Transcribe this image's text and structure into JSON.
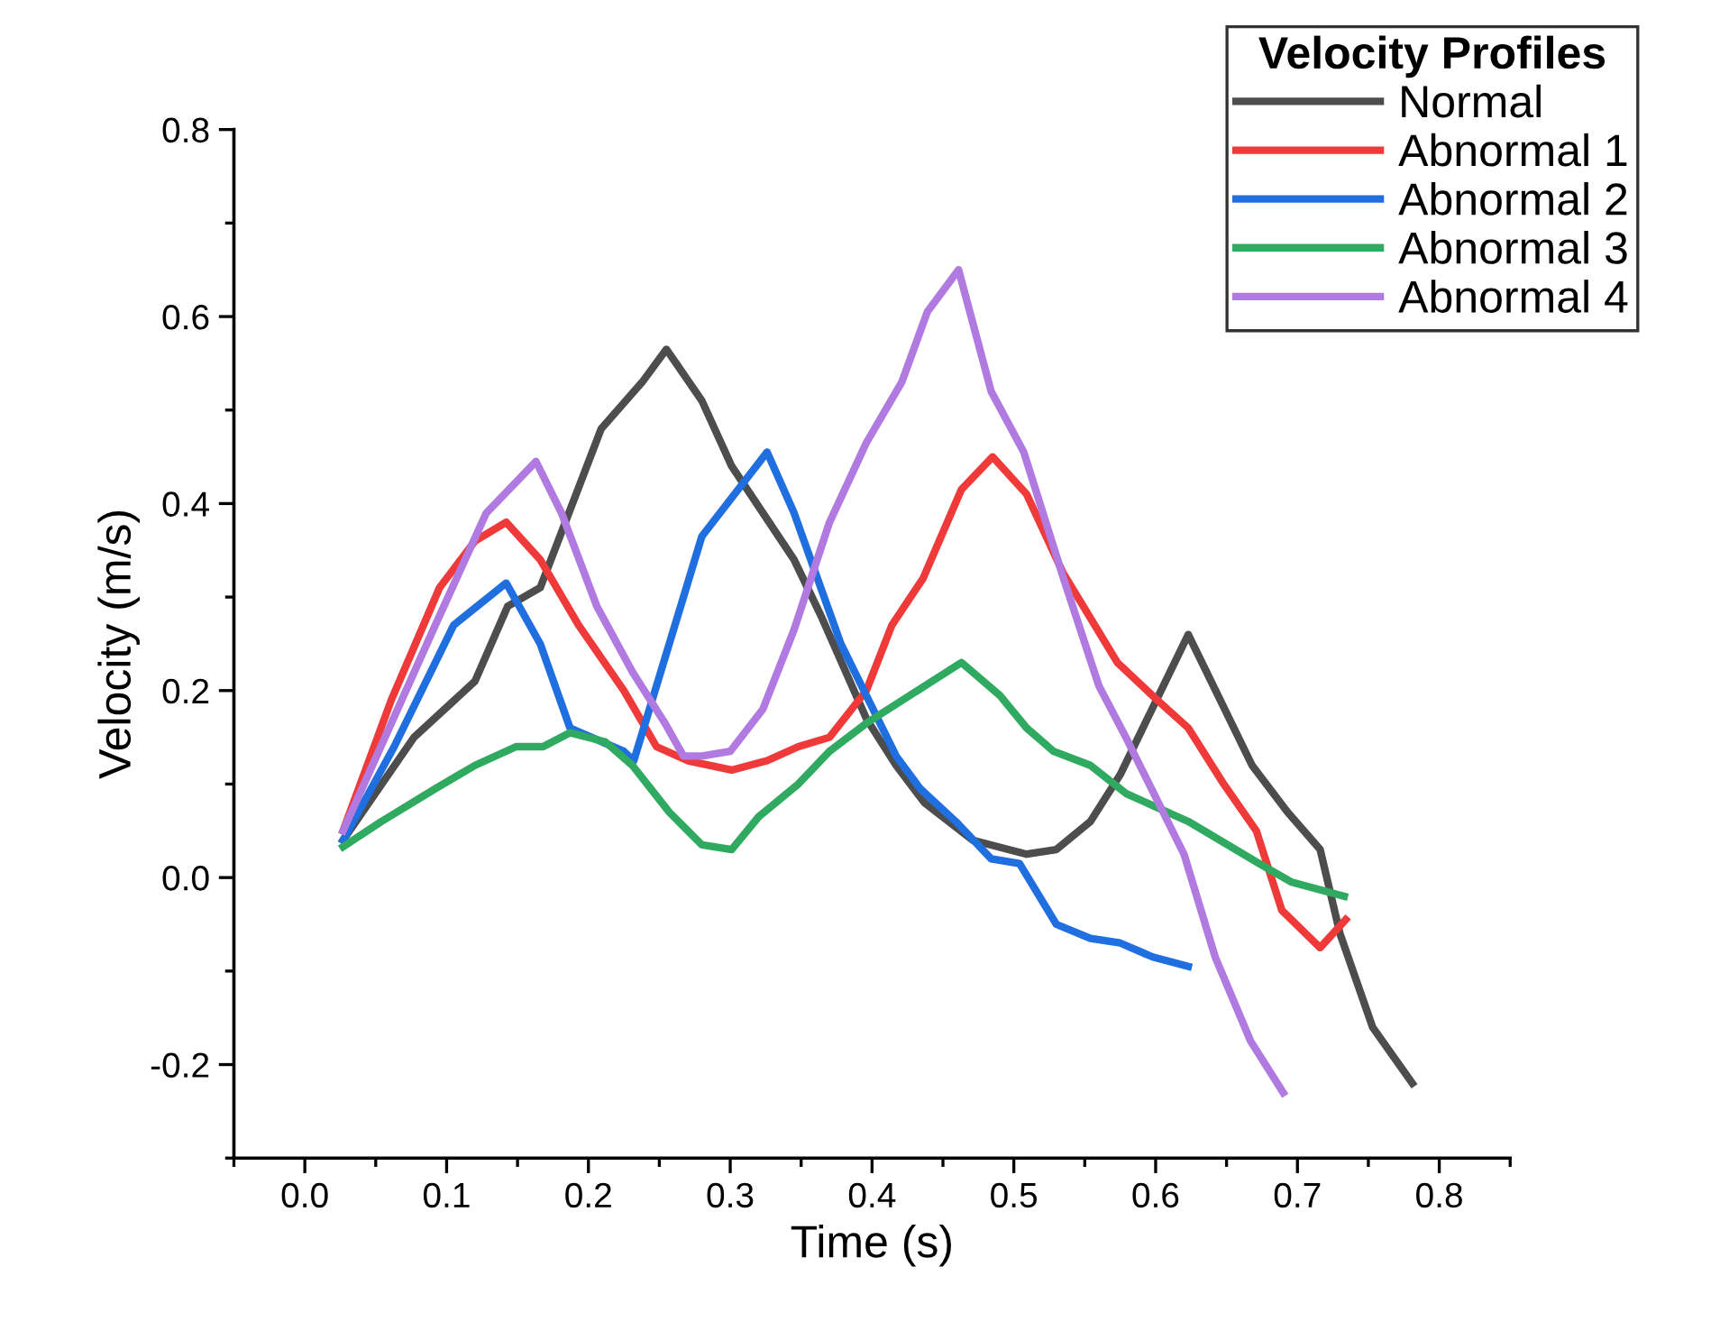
{
  "chart_data": {
    "type": "line",
    "xlabel": "Time (s)",
    "ylabel": "Velocity (m/s)",
    "legend_title": "Velocity Profiles",
    "legend": "top right",
    "grid": false,
    "marker": "none",
    "line_style": "solid",
    "xlim": [
      -0.05,
      0.85
    ],
    "xticks": [
      {
        "value": 0,
        "label": "0.0"
      },
      0.1,
      0.2,
      0.3,
      0.4,
      0.5,
      0.6,
      0.7,
      0.8
    ],
    "ylim": [
      -0.3,
      0.8
    ],
    "yticks": [
      -0.2,
      {
        "value": 0,
        "label": "0.0"
      },
      0.2,
      0.4,
      0.6,
      0.8
    ],
    "series": [
      {
        "name": "Normal",
        "color": "#4d4d4d",
        "x": [
          0.027,
          0.077,
          0.12,
          0.143,
          0.166,
          0.209,
          0.238,
          0.255,
          0.28,
          0.301,
          0.345,
          0.364,
          0.396,
          0.417,
          0.437,
          0.471,
          0.509,
          0.53,
          0.554,
          0.575,
          0.623,
          0.668,
          0.693,
          0.716,
          0.73,
          0.753,
          0.781
        ],
        "values": [
          0.04,
          0.15,
          0.21,
          0.29,
          0.31,
          0.48,
          0.53,
          0.565,
          0.51,
          0.44,
          0.34,
          0.28,
          0.17,
          0.12,
          0.08,
          0.04,
          0.025,
          0.03,
          0.06,
          0.11,
          0.26,
          0.12,
          0.07,
          0.03,
          -0.06,
          -0.16,
          -0.22
        ]
      },
      {
        "name": "Abnormal 1",
        "color": "#f03a3a",
        "x": [
          0.027,
          0.061,
          0.095,
          0.12,
          0.142,
          0.166,
          0.193,
          0.225,
          0.248,
          0.27,
          0.301,
          0.326,
          0.348,
          0.37,
          0.396,
          0.414,
          0.436,
          0.463,
          0.485,
          0.509,
          0.535,
          0.573,
          0.601,
          0.623,
          0.648,
          0.671,
          0.689,
          0.716,
          0.734
        ],
        "values": [
          0.05,
          0.19,
          0.31,
          0.36,
          0.38,
          0.34,
          0.27,
          0.2,
          0.14,
          0.125,
          0.115,
          0.125,
          0.14,
          0.15,
          0.2,
          0.27,
          0.32,
          0.415,
          0.45,
          0.41,
          0.325,
          0.23,
          0.19,
          0.16,
          0.1,
          0.05,
          -0.035,
          -0.075,
          -0.045
        ]
      },
      {
        "name": "Abnormal 2",
        "color": "#1f6fe0",
        "x": [
          0.027,
          0.063,
          0.105,
          0.142,
          0.166,
          0.187,
          0.225,
          0.232,
          0.28,
          0.326,
          0.345,
          0.378,
          0.404,
          0.417,
          0.434,
          0.459,
          0.484,
          0.504,
          0.53,
          0.554,
          0.575,
          0.598,
          0.623
        ],
        "values": [
          0.04,
          0.14,
          0.27,
          0.315,
          0.25,
          0.16,
          0.135,
          0.125,
          0.365,
          0.455,
          0.39,
          0.25,
          0.17,
          0.13,
          0.095,
          0.06,
          0.02,
          0.015,
          -0.05,
          -0.065,
          -0.07,
          -0.085,
          -0.095
        ]
      },
      {
        "name": "Abnormal 3",
        "color": "#2faa60",
        "x": [
          0.027,
          0.054,
          0.092,
          0.12,
          0.149,
          0.168,
          0.187,
          0.212,
          0.231,
          0.257,
          0.28,
          0.301,
          0.32,
          0.348,
          0.37,
          0.396,
          0.463,
          0.49,
          0.509,
          0.528,
          0.554,
          0.579,
          0.623,
          0.673,
          0.696,
          0.733
        ],
        "values": [
          0.033,
          0.06,
          0.095,
          0.12,
          0.14,
          0.14,
          0.155,
          0.145,
          0.12,
          0.07,
          0.035,
          0.03,
          0.065,
          0.1,
          0.135,
          0.165,
          0.23,
          0.195,
          0.16,
          0.135,
          0.12,
          0.09,
          0.06,
          0.015,
          -0.005,
          -0.02
        ]
      },
      {
        "name": "Abnormal 4",
        "color": "#b07ae0",
        "x": [
          0.027,
          0.061,
          0.092,
          0.128,
          0.163,
          0.181,
          0.206,
          0.231,
          0.254,
          0.267,
          0.28,
          0.3,
          0.323,
          0.345,
          0.37,
          0.396,
          0.421,
          0.439,
          0.461,
          0.484,
          0.507,
          0.535,
          0.56,
          0.579,
          0.62,
          0.642,
          0.667,
          0.69
        ],
        "values": [
          0.05,
          0.165,
          0.27,
          0.39,
          0.445,
          0.39,
          0.29,
          0.22,
          0.165,
          0.13,
          0.13,
          0.135,
          0.18,
          0.265,
          0.38,
          0.465,
          0.53,
          0.605,
          0.65,
          0.52,
          0.455,
          0.32,
          0.205,
          0.15,
          0.025,
          -0.085,
          -0.175,
          -0.23
        ]
      }
    ]
  }
}
